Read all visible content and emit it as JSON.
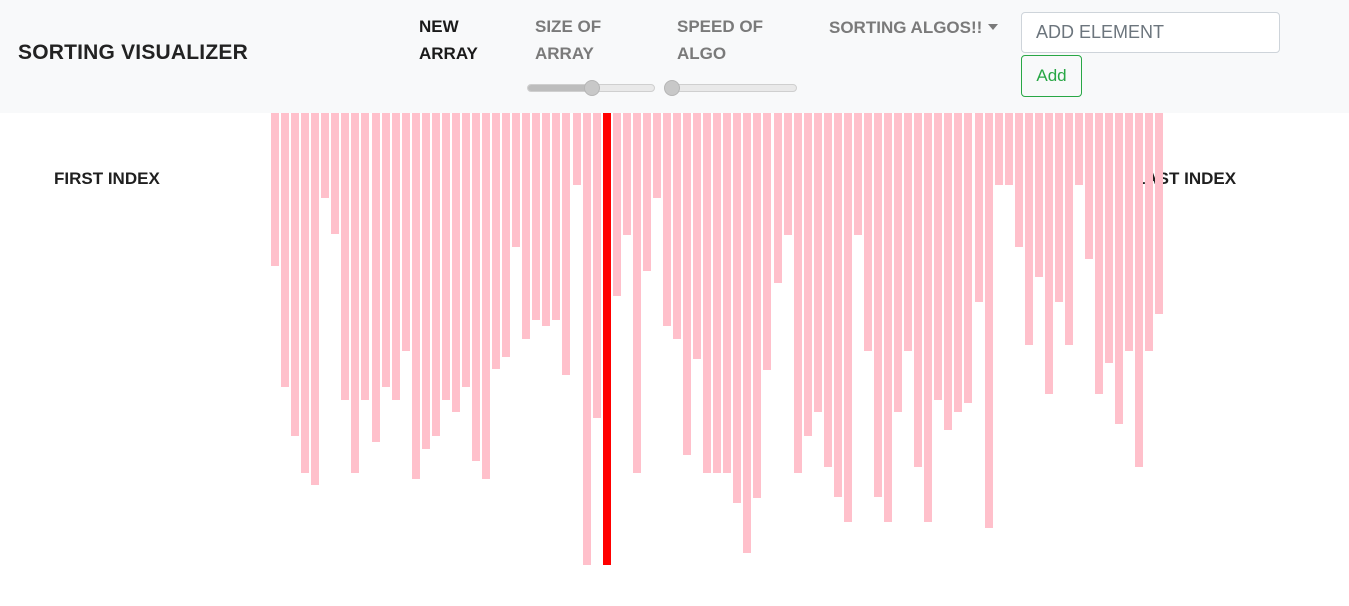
{
  "navbar": {
    "brand": "SORTING VISUALIZER",
    "new_array": [
      "NEW",
      "ARRAY"
    ],
    "size_label": [
      "SIZE OF",
      "ARRAY"
    ],
    "speed_label": [
      "SPEED OF",
      "ALGO"
    ],
    "size_slider_value": 0.5,
    "speed_slider_value": 0.0,
    "algos_dropdown": "SORTING ALGOS!!",
    "add_input_placeholder": "ADD ELEMENT",
    "add_button": "Add"
  },
  "labels": {
    "first_index": "FIRST INDEX",
    "last_index": "LAST INDEX"
  },
  "bars": {
    "color": "#ffc0cb",
    "active_color": "#ff0000",
    "active_index": 33,
    "values": [
      153,
      274,
      323,
      360,
      372,
      85,
      121,
      287,
      360,
      287,
      329,
      274,
      287,
      238,
      366,
      336,
      323,
      287,
      299,
      274,
      348,
      366,
      256,
      244,
      134,
      226,
      207,
      213,
      207,
      262,
      72,
      452,
      305,
      452,
      183,
      122,
      360,
      158,
      85,
      213,
      226,
      342,
      246,
      360,
      360,
      360,
      390,
      440,
      385,
      257,
      170,
      122,
      360,
      323,
      299,
      354,
      384,
      409,
      122,
      238,
      384,
      409,
      299,
      238,
      354,
      409,
      287,
      317,
      299,
      290,
      189,
      415,
      72,
      72,
      134,
      232,
      164,
      281,
      189,
      232,
      72,
      146,
      281,
      250,
      311,
      238,
      354,
      238,
      201
    ]
  }
}
